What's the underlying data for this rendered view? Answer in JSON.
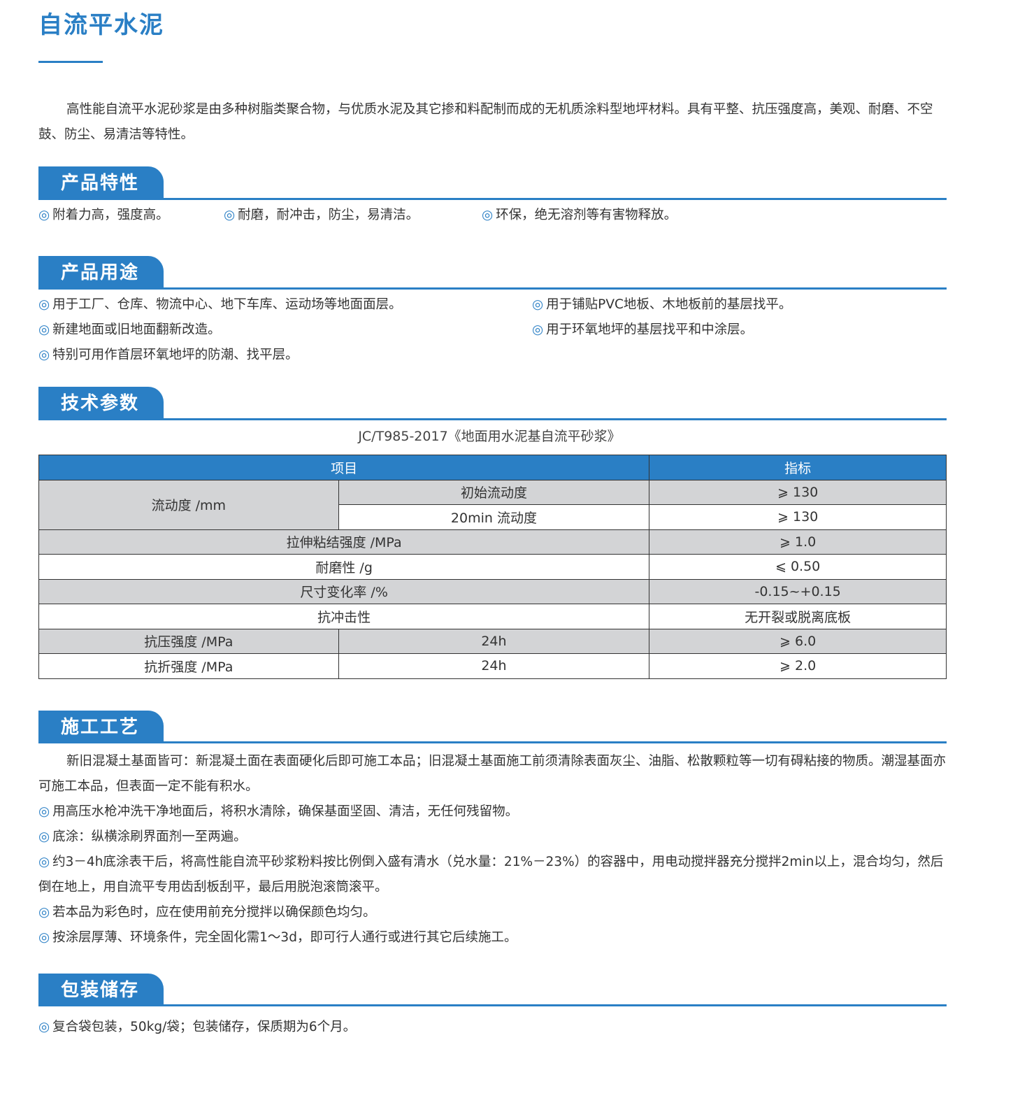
{
  "title": "自流平水泥",
  "intro": "高性能自流平水泥砂浆是由多种树脂类聚合物，与优质水泥及其它掺和料配制而成的无机质涂料型地坪材料。具有平整、抗压强度高，美观、耐磨、不空鼓、防尘、易清洁等特性。",
  "bullet_icon": "◎",
  "accent_color": "#2a7fc5",
  "features": {
    "heading": "产品特性",
    "items": [
      "附着力高，强度高。",
      "耐磨，耐冲击，防尘，易清洁。",
      "环保，绝无溶剂等有害物释放。"
    ]
  },
  "uses": {
    "heading": "产品用途",
    "items": [
      "用于工厂、仓库、物流中心、地下车库、运动场等地面面层。",
      "用于铺贴PVC地板、木地板前的基层找平。",
      "新建地面或旧地面翻新改造。",
      "用于环氧地坪的基层找平和中涂层。",
      "特别可用作首层环氧地坪的防潮、找平层。"
    ]
  },
  "tech": {
    "heading": "技术参数",
    "caption": "JC/T985-2017《地面用水泥基自流平砂浆》",
    "headers": [
      "项目",
      "指标"
    ],
    "flow_label": "流动度 /mm",
    "rows": [
      {
        "sub": "初始流动度",
        "value": "⩾ 130"
      },
      {
        "sub": "20min 流动度",
        "value": "⩾ 130"
      },
      {
        "item": "拉伸粘结强度 /MPa",
        "value": "⩾ 1.0"
      },
      {
        "item": "耐磨性 /g",
        "value": "⩽ 0.50"
      },
      {
        "item": "尺寸变化率 /%",
        "value": "-0.15~+0.15"
      },
      {
        "item": "抗冲击性",
        "value": "无开裂或脱离底板"
      },
      {
        "item": "抗压强度 /MPa",
        "sub": "24h",
        "value": "⩾ 6.0"
      },
      {
        "item": "抗折强度 /MPa",
        "sub": "24h",
        "value": "⩾ 2.0"
      }
    ]
  },
  "process": {
    "heading": "施工工艺",
    "intro": "新旧混凝土基面皆可：新混凝土面在表面硬化后即可施工本品；旧混凝土基面施工前须清除表面灰尘、油脂、松散颗粒等一切有碍粘接的物质。潮湿基面亦可施工本品，但表面一定不能有积水。",
    "items": [
      "用高压水枪冲洗干净地面后，将积水清除，确保基面坚固、清洁，无任何残留物。",
      "底涂：纵横涂刷界面剂一至两遍。",
      "约3－4h底涂表干后，将高性能自流平砂浆粉料按比例倒入盛有清水（兑水量：21%－23%）的容器中，用电动搅拌器充分搅拌2min以上，混合均匀，然后倒在地上，用自流平专用齿刮板刮平，最后用脱泡滚筒滚平。",
      "若本品为彩色时，应在使用前充分搅拌以确保颜色均匀。",
      "按涂层厚薄、环境条件，完全固化需1～3d，即可行人通行或进行其它后续施工。"
    ]
  },
  "storage": {
    "heading": "包装储存",
    "items": [
      "复合袋包装，50kg/袋；包装储存，保质期为6个月。"
    ]
  }
}
